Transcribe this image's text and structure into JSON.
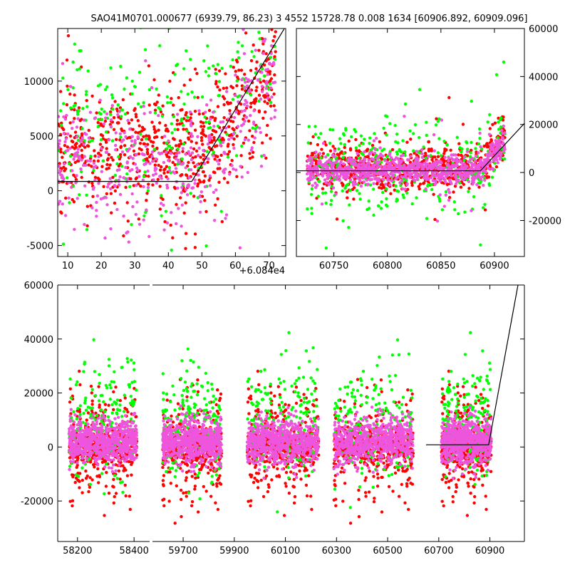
{
  "title": "SAO41M0701.000677 (6939.79, 86.23)   3 4552 15728.78 0.008 1634 [60906.892, 60909.096]",
  "colors": {
    "green": "#00ff00",
    "red": "#ff0000",
    "magenta": "#ee55dd",
    "line": "#000000"
  },
  "chart_data": [
    {
      "id": "zoom-left",
      "type": "scatter",
      "xlim": [
        7,
        75
      ],
      "ylim": [
        -6000,
        14800
      ],
      "xticks": [
        10,
        20,
        30,
        40,
        50,
        60,
        70
      ],
      "yticks": [
        -5000,
        0,
        5000,
        10000
      ],
      "yticks_side": "left",
      "x_offset_label": "+6.084e4",
      "model_line": [
        [
          7,
          850
        ],
        [
          47,
          850
        ],
        [
          75,
          15000
        ]
      ],
      "series": [
        {
          "color": "red",
          "n": 700,
          "x_range": [
            7,
            72
          ],
          "y_center": 3500,
          "y_spread": 2600
        },
        {
          "color": "green",
          "n": 260,
          "x_range": [
            7,
            72
          ],
          "y_center": 5500,
          "y_spread": 4500
        },
        {
          "color": "magenta",
          "n": 420,
          "x_range": [
            7,
            72
          ],
          "y_center": 2500,
          "y_spread": 2800
        }
      ]
    },
    {
      "id": "zoom-right",
      "type": "scatter",
      "xlim": [
        60715,
        60928
      ],
      "ylim": [
        -35000,
        60000
      ],
      "xticks": [
        60750,
        60800,
        60850,
        60900
      ],
      "yticks": [
        -20000,
        0,
        20000,
        40000,
        60000
      ],
      "yticks_side": "right",
      "model_line": [
        [
          60715,
          700
        ],
        [
          60887,
          700
        ],
        [
          60928,
          20500
        ]
      ],
      "series": [
        {
          "color": "red",
          "n": 700,
          "x_range": [
            60725,
            60910
          ],
          "y_center": 1500,
          "y_spread": 4500
        },
        {
          "color": "green",
          "n": 350,
          "x_range": [
            60725,
            60910
          ],
          "y_center": 2500,
          "y_spread": 9000
        },
        {
          "color": "magenta",
          "n": 900,
          "x_range": [
            60725,
            60910
          ],
          "y_center": 1000,
          "y_spread": 2800
        }
      ]
    },
    {
      "id": "full-lightcurve",
      "type": "scatter",
      "ylim": [
        -35000,
        60000
      ],
      "yticks": [
        -20000,
        0,
        20000,
        40000,
        60000
      ],
      "yticks_side": "left",
      "model_line": [
        [
          60650,
          800
        ],
        [
          60895,
          800
        ],
        [
          61010,
          60000
        ]
      ],
      "segments": [
        {
          "xlim": [
            58130,
            58455
          ],
          "xticks": [
            58200,
            58400
          ],
          "data_x": [
            58170,
            58410
          ]
        },
        {
          "xlim": [
            59580,
            61035
          ],
          "xticks": [
            59700,
            59900,
            60100,
            60300,
            60500,
            60700,
            60900
          ],
          "data_x": [
            [
              59620,
              59850
            ],
            [
              59950,
              60230
            ],
            [
              60290,
              60600
            ],
            [
              60710,
              60905
            ]
          ]
        }
      ],
      "series": [
        {
          "color": "red",
          "y_center": 0,
          "y_spread": 10000
        },
        {
          "color": "green",
          "y_center": 9000,
          "y_spread": 11000
        },
        {
          "color": "magenta",
          "y_center": 2000,
          "y_spread": 4000
        }
      ]
    }
  ]
}
